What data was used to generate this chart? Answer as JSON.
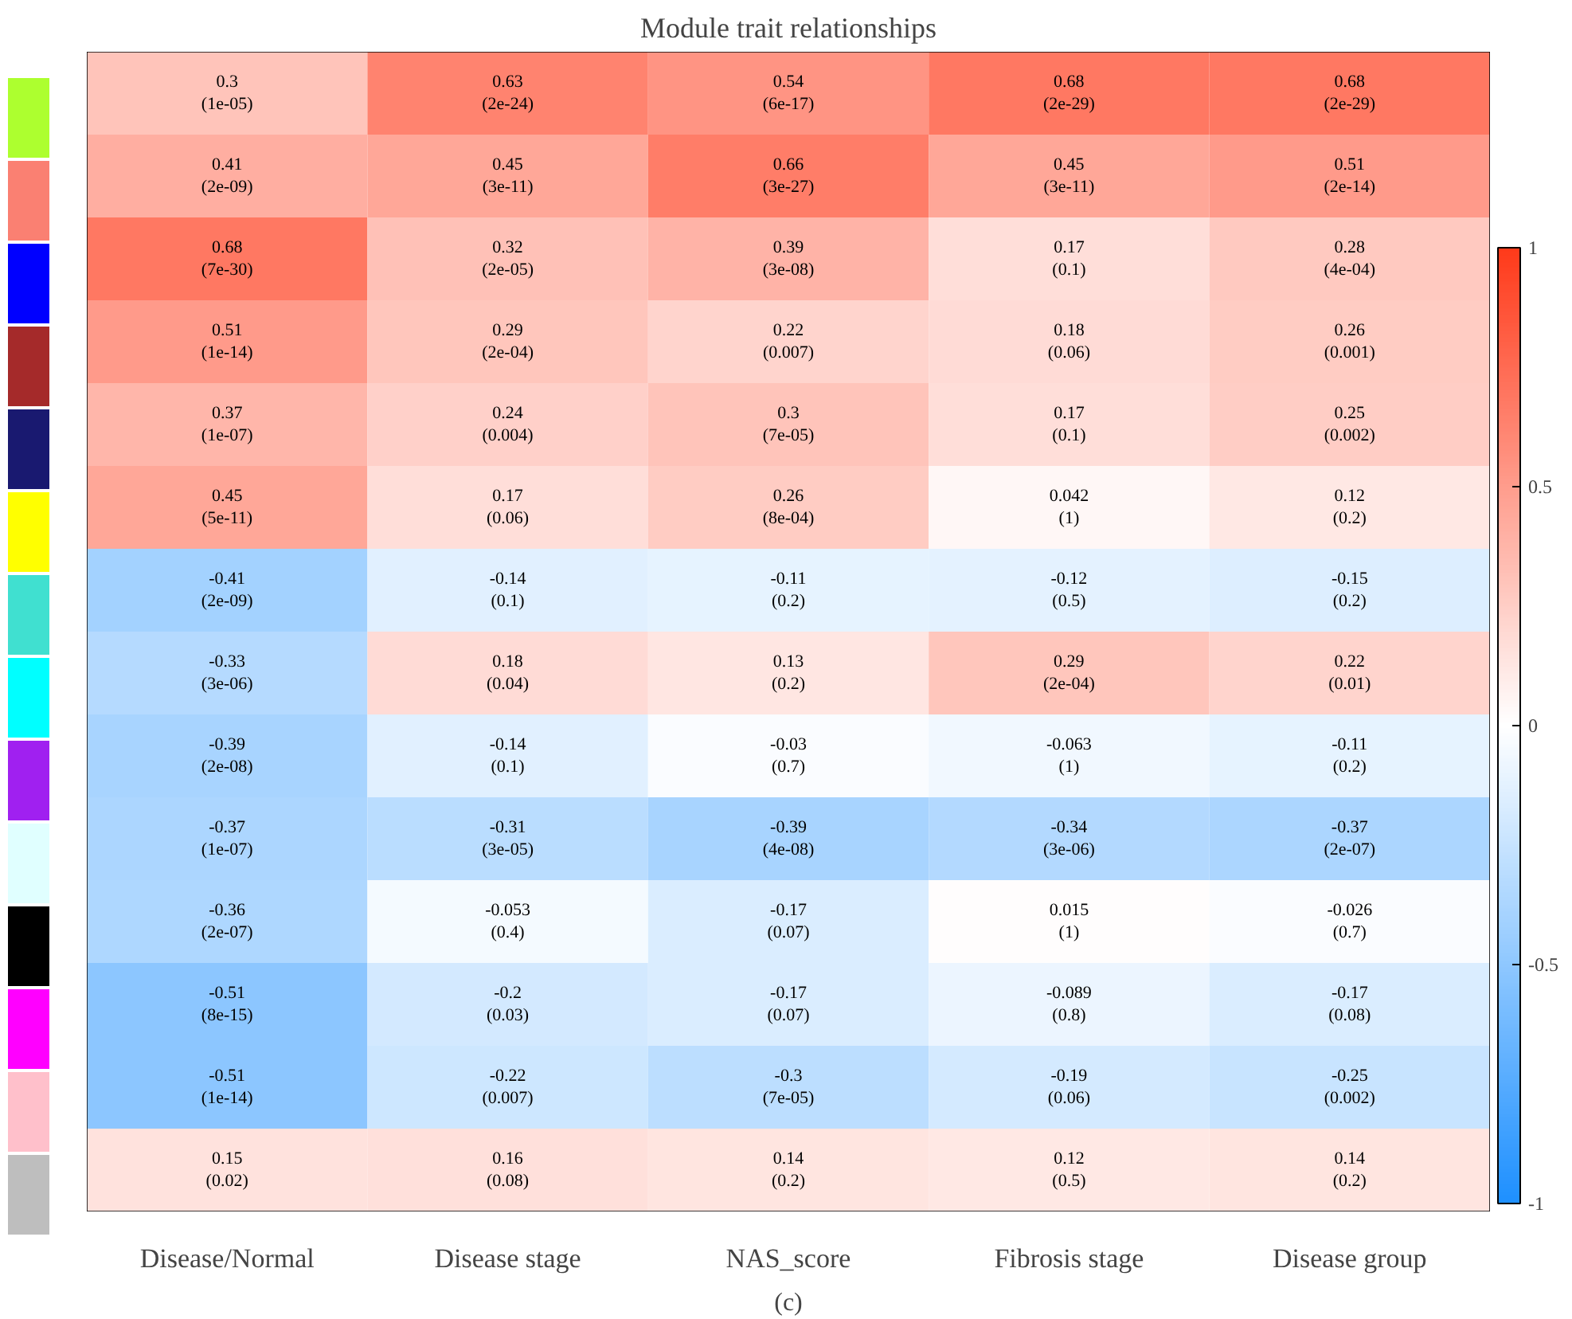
{
  "chart_data": {
    "type": "heatmap",
    "title": "Module trait relationships",
    "annotations": [
      "(c)"
    ],
    "categories": [
      "Disease/Normal",
      "Disease stage",
      "NAS_score",
      "Fibrosis stage",
      "Disease group"
    ],
    "y_categories": [
      null,
      null,
      null,
      null,
      null,
      null,
      null,
      null,
      null,
      null,
      null,
      null,
      null,
      null
    ],
    "colors": [
      "#adff2f",
      "#fa8072",
      "#0000ff",
      "#a52a2a",
      "#191970",
      "#ffff00",
      "#40e0d0",
      "#00ffff",
      "#a020f0",
      "#e0ffff",
      "#000000",
      "#ff00ff",
      "#ffc0cb",
      "#bebebe"
    ],
    "cells": [
      [
        0.3,
        0.63,
        0.54,
        0.68,
        0.68
      ],
      [
        0.41,
        0.45,
        0.66,
        0.45,
        0.51
      ],
      [
        0.68,
        0.32,
        0.39,
        0.17,
        0.28
      ],
      [
        0.51,
        0.29,
        0.22,
        0.18,
        0.26
      ],
      [
        0.37,
        0.24,
        0.3,
        0.17,
        0.25
      ],
      [
        0.45,
        0.17,
        0.26,
        0.042,
        0.12
      ],
      [
        -0.41,
        -0.14,
        -0.11,
        -0.12,
        -0.15
      ],
      [
        -0.33,
        0.18,
        0.13,
        0.29,
        0.22
      ],
      [
        -0.39,
        -0.14,
        -0.03,
        -0.063,
        -0.11
      ],
      [
        -0.37,
        -0.31,
        -0.39,
        -0.34,
        -0.37
      ],
      [
        -0.36,
        -0.053,
        -0.17,
        0.015,
        -0.026
      ],
      [
        -0.51,
        -0.2,
        -0.17,
        -0.089,
        -0.17
      ],
      [
        -0.51,
        -0.22,
        -0.3,
        -0.19,
        -0.25
      ],
      [
        0.15,
        0.16,
        0.14,
        0.12,
        0.14
      ]
    ],
    "cell_labels": [
      [
        "0.3\n(1e-05)",
        "0.63\n(2e-24)",
        "0.54\n(6e-17)",
        "0.68\n(2e-29)",
        "0.68\n(2e-29)"
      ],
      [
        "0.41\n(2e-09)",
        "0.45\n(3e-11)",
        "0.66\n(3e-27)",
        "0.45\n(3e-11)",
        "0.51\n(2e-14)"
      ],
      [
        "0.68\n(7e-30)",
        "0.32\n(2e-05)",
        "0.39\n(3e-08)",
        "0.17\n(0.1)",
        "0.28\n(4e-04)"
      ],
      [
        "0.51\n(1e-14)",
        "0.29\n(2e-04)",
        "0.22\n(0.007)",
        "0.18\n(0.06)",
        "0.26\n(0.001)"
      ],
      [
        "0.37\n(1e-07)",
        "0.24\n(0.004)",
        "0.3\n(7e-05)",
        "0.17\n(0.1)",
        "0.25\n(0.002)"
      ],
      [
        "0.45\n(5e-11)",
        "0.17\n(0.06)",
        "0.26\n(8e-04)",
        "0.042\n(1)",
        "0.12\n(0.2)"
      ],
      [
        "-0.41\n(2e-09)",
        "-0.14\n(0.1)",
        "-0.11\n(0.2)",
        "-0.12\n(0.5)",
        "-0.15\n(0.2)"
      ],
      [
        "-0.33\n(3e-06)",
        "0.18\n(0.04)",
        "0.13\n(0.2)",
        "0.29\n(2e-04)",
        "0.22\n(0.01)"
      ],
      [
        "-0.39\n(2e-08)",
        "-0.14\n(0.1)",
        "-0.03\n(0.7)",
        "-0.063\n(1)",
        "-0.11\n(0.2)"
      ],
      [
        "-0.37\n(1e-07)",
        "-0.31\n(3e-05)",
        "-0.39\n(4e-08)",
        "-0.34\n(3e-06)",
        "-0.37\n(2e-07)"
      ],
      [
        "-0.36\n(2e-07)",
        "-0.053\n(0.4)",
        "-0.17\n(0.07)",
        "0.015\n(1)",
        "-0.026\n(0.7)"
      ],
      [
        "-0.51\n(8e-15)",
        "-0.2\n(0.03)",
        "-0.17\n(0.07)",
        "-0.089\n(0.8)",
        "-0.17\n(0.08)"
      ],
      [
        "-0.51\n(1e-14)",
        "-0.22\n(0.007)",
        "-0.3\n(7e-05)",
        "-0.19\n(0.06)",
        "-0.25\n(0.002)"
      ],
      [
        "0.15\n(0.02)",
        "0.16\n(0.08)",
        "0.14\n(0.2)",
        "0.12\n(0.5)",
        "0.14\n(0.2)"
      ]
    ],
    "clim": [
      -1,
      1
    ],
    "cticks": [
      -1,
      -0.5,
      0,
      0.5,
      1
    ]
  }
}
